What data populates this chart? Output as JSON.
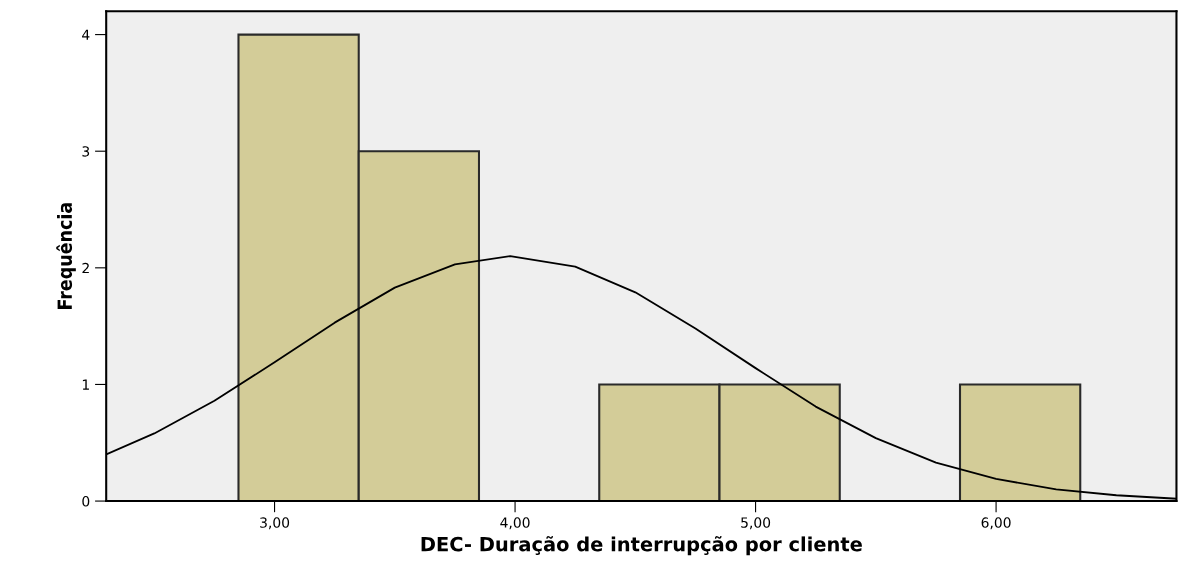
{
  "chart_data": {
    "type": "histogram",
    "xlabel": "DEC- Duração de interrupção por cliente",
    "ylabel": "Frequência",
    "bins": [
      2.85,
      3.35,
      3.85,
      4.35,
      4.85,
      5.35,
      5.85,
      6.35
    ],
    "series": [
      {
        "color": "#d3cc98",
        "values": [
          4,
          3,
          0,
          1,
          1,
          0,
          1
        ]
      },
      {
        "type": "line",
        "color": "#000000",
        "x": [
          2.3,
          2.5,
          2.75,
          3.0,
          3.25,
          3.5,
          3.75,
          3.98,
          4.25,
          4.5,
          4.75,
          5.0,
          5.25,
          5.5,
          5.75,
          6.0,
          6.25,
          6.5,
          6.75
        ],
        "values": [
          0.4,
          0.58,
          0.86,
          1.19,
          1.53,
          1.83,
          2.03,
          2.1,
          2.01,
          1.79,
          1.48,
          1.14,
          0.81,
          0.54,
          0.33,
          0.19,
          0.1,
          0.05,
          0.02
        ]
      }
    ],
    "xlim": [
      2.3,
      6.75
    ],
    "ylim": [
      0,
      4.2
    ],
    "xticks": [
      {
        "value": 3,
        "label": "3,00"
      },
      {
        "value": 4,
        "label": "4,00"
      },
      {
        "value": 5,
        "label": "5,00"
      },
      {
        "value": 6,
        "label": "6,00"
      }
    ],
    "yticks": [
      0,
      1,
      2,
      3,
      4
    ],
    "grid": false,
    "legend": false,
    "marker": "none",
    "line_style": "solid"
  }
}
